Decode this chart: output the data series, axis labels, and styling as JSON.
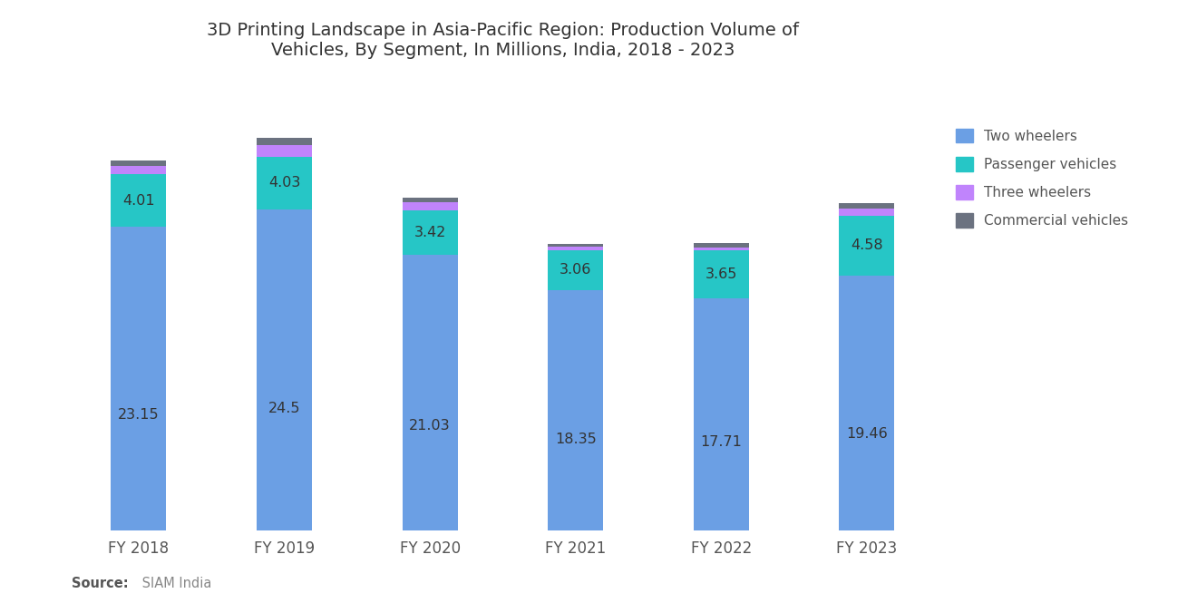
{
  "title": "3D Printing Landscape in Asia-Pacific Region: Production Volume of\nVehicles, By Segment, In Millions, India, 2018 - 2023",
  "categories": [
    "FY 2018",
    "FY 2019",
    "FY 2020",
    "FY 2021",
    "FY 2022",
    "FY 2023"
  ],
  "two_wheelers": [
    23.15,
    24.5,
    21.03,
    18.35,
    17.71,
    19.46
  ],
  "passenger_vehicles": [
    4.01,
    4.03,
    3.42,
    3.06,
    3.65,
    4.58
  ],
  "three_wheelers": [
    0.63,
    0.9,
    0.63,
    0.22,
    0.25,
    0.5
  ],
  "commercial_vehicles": [
    0.46,
    0.56,
    0.34,
    0.23,
    0.33,
    0.45
  ],
  "colors": {
    "two_wheelers": "#6B9FE4",
    "passenger_vehicles": "#26C6C6",
    "three_wheelers": "#C084FC",
    "commercial_vehicles": "#6B7280"
  },
  "legend_labels": [
    "Two wheelers",
    "Passenger vehicles",
    "Three wheelers",
    "Commercial vehicles"
  ],
  "source": "SIAM India",
  "background_color": "#FFFFFF",
  "title_fontsize": 14,
  "bar_width": 0.38
}
